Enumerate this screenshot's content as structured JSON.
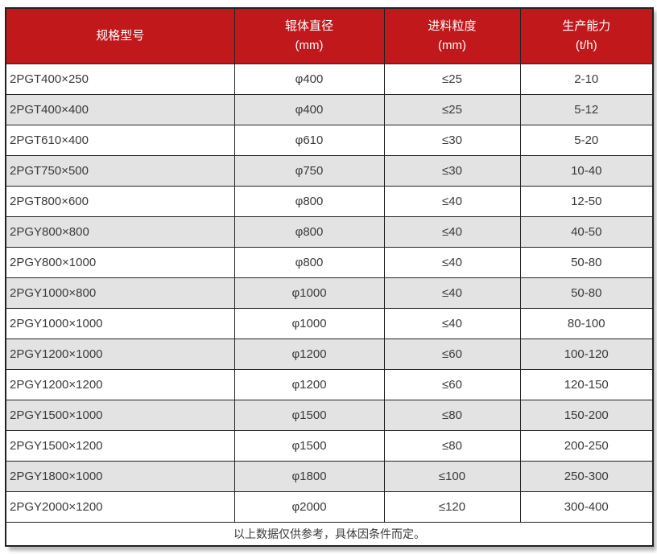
{
  "colors": {
    "header_bg": "#c1181b",
    "header_text": "#ffffff",
    "row_alt_bg": "#e3e3e3",
    "border": "#222222",
    "body_text": "#3a3a3a"
  },
  "table": {
    "columns": [
      {
        "label": "规格型号",
        "unit": ""
      },
      {
        "label": "辊体直径",
        "unit": "(mm)"
      },
      {
        "label": "进料粒度",
        "unit": "(mm)"
      },
      {
        "label": "生产能力",
        "unit": "(t/h)"
      }
    ],
    "rows": [
      [
        "2PGT400×250",
        "φ400",
        "≤25",
        "2-10"
      ],
      [
        "2PGT400×400",
        "φ400",
        "≤25",
        "5-12"
      ],
      [
        "2PGT610×400",
        "φ610",
        "≤30",
        "5-20"
      ],
      [
        "2PGT750×500",
        "φ750",
        "≤30",
        "10-40"
      ],
      [
        "2PGT800×600",
        "φ800",
        "≤40",
        "12-50"
      ],
      [
        "2PGY800×800",
        "φ800",
        "≤40",
        "40-50"
      ],
      [
        "2PGY800×1000",
        "φ800",
        "≤40",
        "50-80"
      ],
      [
        "2PGY1000×800",
        "φ1000",
        "≤40",
        "50-80"
      ],
      [
        "2PGY1000×1000",
        "φ1000",
        "≤40",
        "80-100"
      ],
      [
        "2PGY1200×1000",
        "φ1200",
        "≤60",
        "100-120"
      ],
      [
        "2PGY1200×1200",
        "φ1200",
        "≤60",
        "120-150"
      ],
      [
        "2PGY1500×1000",
        "φ1500",
        "≤80",
        "150-200"
      ],
      [
        "2PGY1500×1200",
        "φ1500",
        "≤80",
        "200-250"
      ],
      [
        "2PGY1800×1000",
        "φ1800",
        "≤100",
        "250-300"
      ],
      [
        "2PGY2000×1200",
        "φ2000",
        "≤120",
        "300-400"
      ]
    ],
    "footnote": "以上数据仅供参考，具体因条件而定。"
  }
}
